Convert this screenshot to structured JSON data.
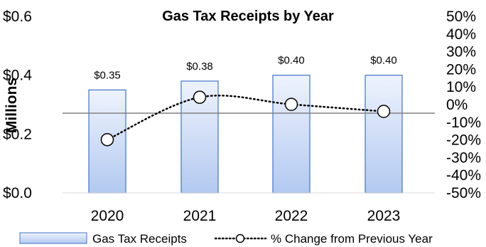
{
  "chart_data": {
    "type": "bar",
    "title": "Gas Tax Receipts by Year",
    "ylabel": "Millions",
    "xlabel": "",
    "categories": [
      "2020",
      "2021",
      "2022",
      "2023"
    ],
    "series": [
      {
        "name": "Gas Tax Receipts",
        "type": "bar",
        "axis": "left",
        "values": [
          0.35,
          0.38,
          0.4,
          0.4
        ],
        "data_labels": [
          "$0.35",
          "$0.38",
          "$0.40",
          "$0.40"
        ]
      },
      {
        "name": "% Change from Previous Year",
        "type": "line",
        "axis": "right",
        "line_style": "dotted",
        "marker": "circle",
        "values": [
          -0.15,
          0.09,
          0.05,
          0.01
        ]
      }
    ],
    "ylim_left": [
      0,
      0.6
    ],
    "ytick_left_values": [
      0,
      0.2,
      0.4,
      0.6
    ],
    "ytick_left_labels": [
      "$0.0",
      "$0.2",
      "$0.4",
      "$0.6"
    ],
    "ylim_right": [
      -0.5,
      0.5
    ],
    "ytick_right_values": [
      -0.5,
      -0.4,
      -0.3,
      -0.2,
      -0.1,
      0,
      0.1,
      0.2,
      0.3,
      0.4,
      0.5
    ],
    "ytick_right_labels": [
      "-50%",
      "-40%",
      "-30%",
      "-20%",
      "-10%",
      "0%",
      "10%",
      "20%",
      "30%",
      "40%",
      "50%"
    ],
    "grid": false,
    "legend_position": "bottom",
    "colors": {
      "bar_fill_top": "#eef3fd",
      "bar_fill_bottom": "#b3c9f0",
      "bar_stroke": "#4472c4",
      "line": "#000000",
      "marker_fill": "#ffffff",
      "zero_line": "#808080"
    }
  }
}
